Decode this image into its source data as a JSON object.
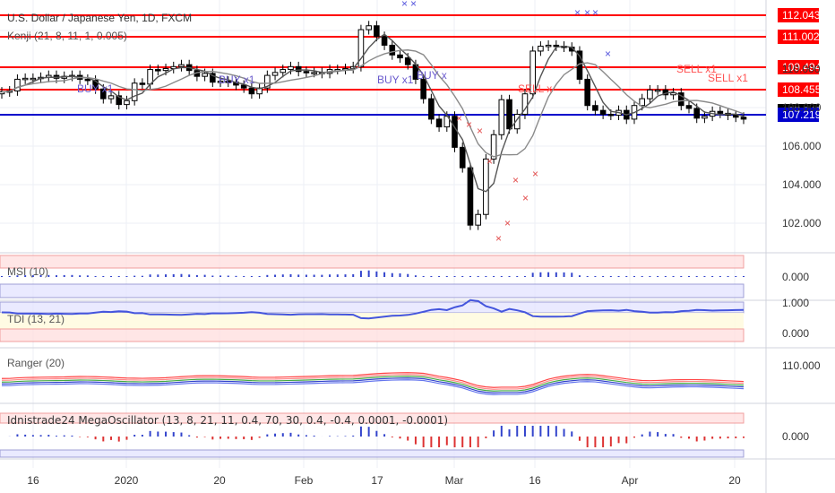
{
  "header": {
    "title": "U.S. Dollar / Japanese Yen, 1D, FXCM",
    "kenji_label": "Kenji (21, 8, 11, 1, 0.005)"
  },
  "panes": {
    "msi_label": "MSI (10)",
    "tdi_label": "TDI (13, 21)",
    "ranger_label": "Ranger (20)",
    "mega_label": "Idnistrade24 MegaOscillator (13, 8, 21, 11, 0.4, 70, 30, 0.4, -0.4, 0.0001, -0.0001)"
  },
  "colors": {
    "red_line": "#ff0000",
    "blue_line": "#0000cc",
    "up_candle": "#ffffff",
    "down_candle": "#000000",
    "buy_text": "#6a5acd",
    "sell_text": "#ff5252"
  },
  "chart_data": [
    {
      "type": "candlestick",
      "title": "U.S. Dollar / Japanese Yen, 1D, FXCM",
      "x_ticks": [
        "16",
        "2020",
        "20",
        "Feb",
        "17",
        "Mar",
        "16",
        "Apr",
        "20"
      ],
      "y_ticks": [
        "102.000",
        "104.000",
        "106.000",
        "108.000",
        "110.000"
      ],
      "ylim": [
        100.3,
        112.9
      ],
      "grid": true,
      "horizontal_levels": [
        {
          "value": "112.043",
          "color": "#ff0000"
        },
        {
          "value": "111.002",
          "color": "#ff0000"
        },
        {
          "value": "109.494",
          "color": "#ff0000"
        },
        {
          "value": "108.455",
          "color": "#ff0000"
        },
        {
          "value": "107.349",
          "color": "#000000"
        },
        {
          "value": "107.219",
          "color": "#0000cc"
        }
      ],
      "signals": [
        {
          "label": "BUY x1",
          "type": "buy"
        },
        {
          "label": "BUY x1",
          "type": "buy"
        },
        {
          "label": "BUY x1",
          "type": "buy"
        },
        {
          "label": "BUY x",
          "type": "buy"
        },
        {
          "label": "SELL x",
          "type": "sell"
        },
        {
          "label": "SELL x1",
          "type": "sell"
        },
        {
          "label": "SELL x1",
          "type": "sell"
        }
      ],
      "closes": [
        108.75,
        108.8,
        109.4,
        109.45,
        109.45,
        109.5,
        109.6,
        109.45,
        109.55,
        109.6,
        109.4,
        109.35,
        108.9,
        108.4,
        108.55,
        108.1,
        108.3,
        109.2,
        109.15,
        109.9,
        109.85,
        109.95,
        110.05,
        110.15,
        109.85,
        109.55,
        109.7,
        109.25,
        109.3,
        109.25,
        109.1,
        108.95,
        108.65,
        108.95,
        109.6,
        109.75,
        109.9,
        110.05,
        109.8,
        109.75,
        109.75,
        109.7,
        109.9,
        109.9,
        109.95,
        110.05,
        111.95,
        112.15,
        111.6,
        111.15,
        110.65,
        110.5,
        110.15,
        109.4,
        108.4,
        107.35,
        106.95,
        107.5,
        105.9,
        104.85,
        101.9,
        102.45,
        105.3,
        106.55,
        108.35,
        106.85,
        107.6,
        108.65,
        110.85,
        111.1,
        111.15,
        111.1,
        111.05,
        110.85,
        109.4,
        108.05,
        107.8,
        107.6,
        107.55,
        107.8,
        107.35,
        108.05,
        108.4,
        108.85,
        108.85,
        108.6,
        108.7,
        108.05,
        107.9,
        107.4,
        107.5,
        107.75,
        107.65,
        107.55,
        107.45,
        107.35
      ]
    },
    {
      "type": "bar",
      "title": "MSI (10)",
      "y_ticks": [
        "0.000"
      ]
    },
    {
      "type": "line",
      "title": "TDI (13, 21)",
      "y_ticks": [
        "1.000",
        "0.000"
      ]
    },
    {
      "type": "line",
      "title": "Ranger (20)",
      "y_ticks": [
        "110.000"
      ]
    },
    {
      "type": "bar",
      "title": "Idnistrade24 MegaOscillator (13, 8, 21, 11, 0.4, 70, 30, 0.4, -0.4, 0.0001, -0.0001)",
      "y_ticks": [
        "0.000"
      ]
    }
  ]
}
